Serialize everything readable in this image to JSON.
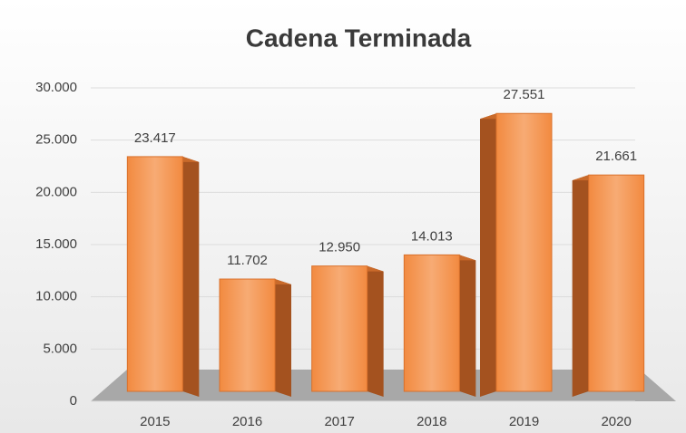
{
  "chart_data": {
    "type": "bar",
    "title": "Cadena Terminada",
    "categories": [
      "2015",
      "2016",
      "2017",
      "2018",
      "2019",
      "2020"
    ],
    "values": [
      23417,
      11702,
      12950,
      14013,
      27551,
      21661
    ],
    "value_labels": [
      "23.417",
      "11.702",
      "12.950",
      "14.013",
      "27.551",
      "21.661"
    ],
    "color": "#f39a5a",
    "ylim": [
      0,
      30000
    ],
    "yticks": [
      0,
      {
        "value": 5000,
        "label": "5.000"
      },
      {
        "value": 10000,
        "label": "10.000"
      },
      {
        "value": 15000,
        "label": "15.000"
      },
      {
        "value": 20000,
        "label": "20.000"
      },
      {
        "value": 25000,
        "label": "25.000"
      },
      {
        "value": 30000,
        "label": "30.000"
      }
    ],
    "grid": true
  }
}
